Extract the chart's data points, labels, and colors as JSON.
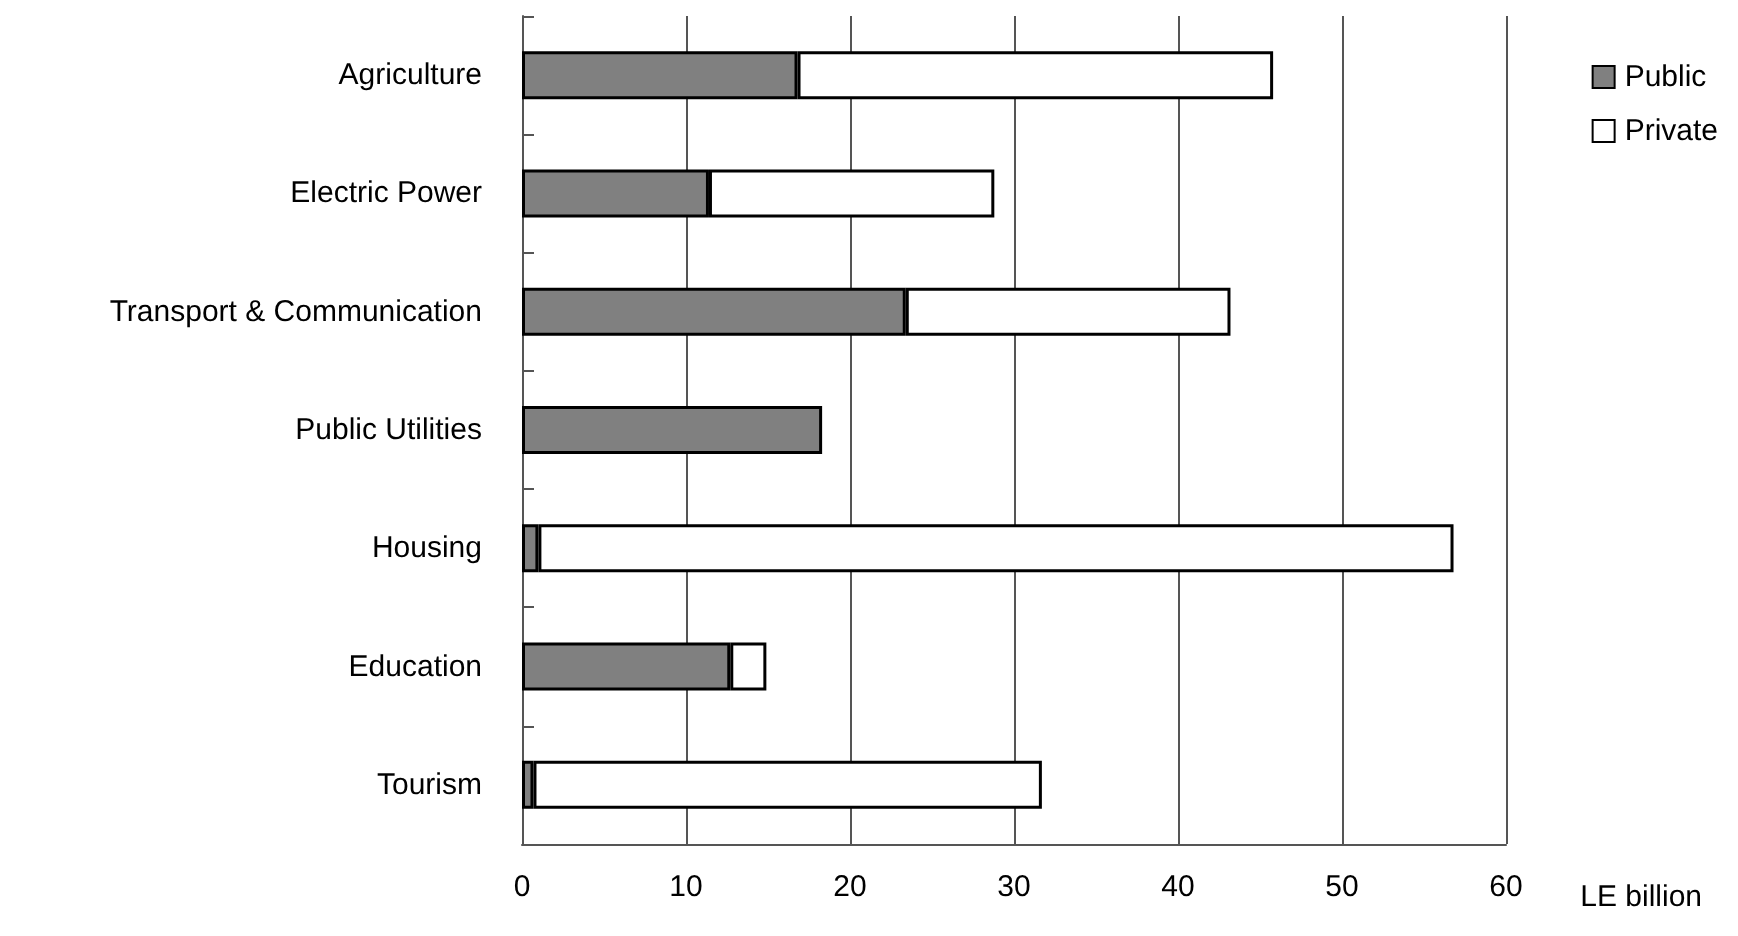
{
  "chart_data": {
    "type": "bar",
    "orientation": "horizontal",
    "stacked": true,
    "categories": [
      "Agriculture",
      "Electric Power",
      "Transport & Communication",
      "Public Utilities",
      "Housing",
      "Education",
      "Tourism"
    ],
    "series": [
      {
        "name": "Public",
        "color": "#808080",
        "values": [
          16.8,
          11.4,
          23.4,
          18.3,
          1.0,
          12.7,
          0.7
        ]
      },
      {
        "name": "Private",
        "color": "#ffffff",
        "values": [
          29.0,
          17.4,
          19.8,
          null,
          55.8,
          2.2,
          31.0
        ]
      }
    ],
    "xlabel": "LE billion",
    "xlim": [
      0,
      60
    ],
    "xticks": [
      0,
      10,
      20,
      30,
      40,
      50,
      60
    ],
    "grid": "x",
    "legend": "top right"
  }
}
